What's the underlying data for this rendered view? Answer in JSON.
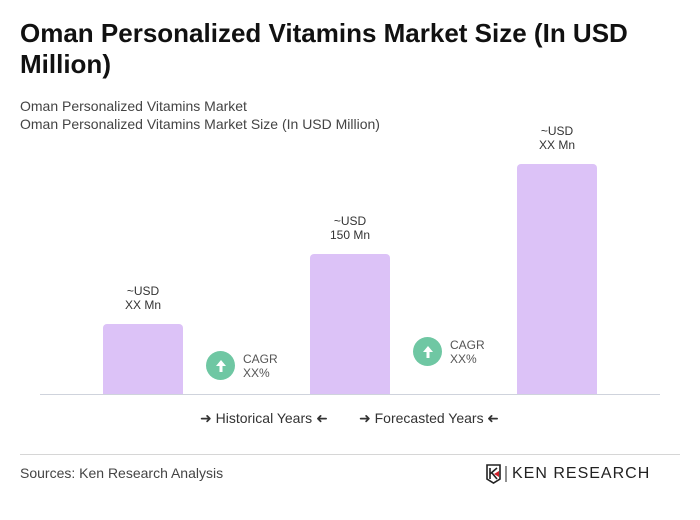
{
  "title": "Oman Personalized Vitamins Market Size (In USD Million)",
  "subtitle1": "Oman Personalized Vitamins Market",
  "subtitle2": "Oman Personalized Vitamins Market Size (In USD Million)",
  "chart_data": {
    "type": "bar",
    "categories": [
      "",
      "",
      ""
    ],
    "values": [
      75,
      150,
      246
    ],
    "data_labels": [
      [
        "~USD",
        "XX Mn"
      ],
      [
        "~USD",
        "150 Mn"
      ],
      [
        "~USD",
        "XX Mn"
      ]
    ],
    "bar_color": "#dcc2f7",
    "cagr": [
      {
        "label": "CAGR",
        "value": "XX%"
      },
      {
        "label": "CAGR",
        "value": "XX%"
      }
    ],
    "cagr_color": "#6fc7a3",
    "legend": [
      "Historical Years",
      "Forecasted Years"
    ],
    "grid": false
  },
  "sources": "Sources: Ken Research Analysis",
  "logo": "KEN RESEARCH"
}
